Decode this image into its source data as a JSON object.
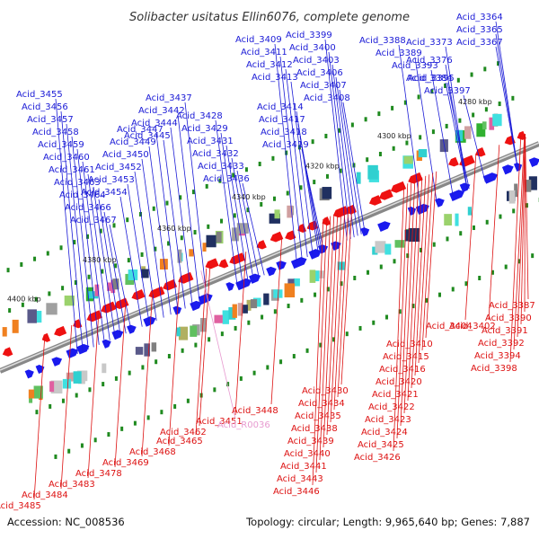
{
  "title": "Solibacter usitatus Ellin6076, complete genome",
  "accession_label": "Accession: NC_008536",
  "summary_label": "Topology: circular; Length: 9,965,640 bp; Genes: 7,887",
  "colors": {
    "forward_label": "#1a1ad6",
    "reverse_label": "#dd1111",
    "rna_label": "#e79ad0",
    "forward_gene": "#1a1aee",
    "reverse_gene": "#ee1111",
    "backbone": "#888888",
    "tick": "#1f8a1f"
  },
  "kbp_labels": [
    "4280 kbp",
    "4300 kbp",
    "4320 kbp",
    "4340 kbp",
    "4360 kbp",
    "4380 kbp",
    "4400 kbp"
  ],
  "forward_labels": [
    "Acid_3364",
    "Acid_3365",
    "Acid_3367",
    "Acid_3373",
    "Acid_3376",
    "Acid_3384",
    "Acid_3388",
    "Acid_3389",
    "Acid_3393",
    "Acid_3395",
    "Acid_3397",
    "Acid_3399",
    "Acid_3400",
    "Acid_3403",
    "Acid_3406",
    "Acid_3407",
    "Acid_3408",
    "Acid_3409",
    "Acid_3411",
    "Acid_3412",
    "Acid_3413",
    "Acid_3414",
    "Acid_3417",
    "Acid_3418",
    "Acid_3419",
    "Acid_3428",
    "Acid_3429",
    "Acid_3431",
    "Acid_3432",
    "Acid_3433",
    "Acid_3436",
    "Acid_3437",
    "Acid_3442",
    "Acid_3444",
    "Acid_3445",
    "Acid_3447",
    "Acid_3449",
    "Acid_3450",
    "Acid_3452",
    "Acid_3453",
    "Acid_3454",
    "Acid_3455",
    "Acid_3456",
    "Acid_3457",
    "Acid_3458",
    "Acid_3459",
    "Acid_3460",
    "Acid_3461",
    "Acid_3463",
    "Acid_3464",
    "Acid_3466",
    "Acid_3467"
  ],
  "reverse_labels": [
    "Acid_3387",
    "Acid_3390",
    "Acid_3391",
    "Acid_3392",
    "Acid_3394",
    "Acid_3398",
    "Acid_3402",
    "Acid_3404",
    "Acid_3410",
    "Acid_3415",
    "Acid_3416",
    "Acid_3420",
    "Acid_3421",
    "Acid_3422",
    "Acid_3423",
    "Acid_3424",
    "Acid_3425",
    "Acid_3426",
    "Acid_3430",
    "Acid_3434",
    "Acid_3435",
    "Acid_3438",
    "Acid_3439",
    "Acid_3440",
    "Acid_3441",
    "Acid_3443",
    "Acid_3446",
    "Acid_3448",
    "Acid_3451",
    "Acid_3462",
    "Acid_3465",
    "Acid_3468",
    "Acid_3469",
    "Acid_3478",
    "Acid_3483",
    "Acid_3484",
    "Acid_3485"
  ],
  "rna_labels": [
    "Acid_R0036"
  ]
}
